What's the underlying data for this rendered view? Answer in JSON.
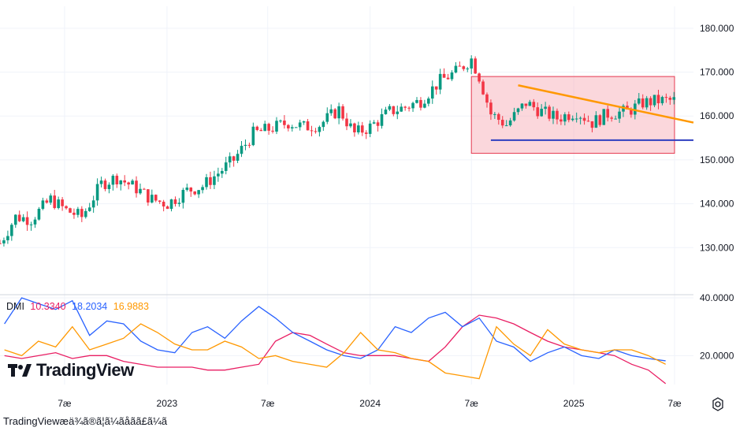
{
  "footer_text": "TradingViewæä¾ã®ã¦ã¼ã­åãã£ã¼ã",
  "logo_text": "TradingView",
  "icons": {
    "logo": "tradingview-logo-icon",
    "settings": "gear-icon"
  },
  "dmi_legend": {
    "label": "DMI",
    "values": [
      "10.3340",
      "18.2034",
      "16.9883"
    ],
    "colors": [
      "#e91e63",
      "#2962ff",
      "#ff9800"
    ]
  },
  "colors": {
    "up": "#089981",
    "down": "#f23645",
    "box_fill": "#f7a6b2",
    "box_stroke": "#e53950",
    "trend_orange": "#ff9800",
    "support_blue": "#2e3fc0"
  },
  "chart_data": [
    {
      "type": "candlestick",
      "title": "",
      "ylim": [
        120,
        185
      ],
      "y_ticks": [
        "130.000",
        "140.000",
        "150.000",
        "160.000",
        "170.000",
        "180.000"
      ],
      "y_tick_values": [
        130,
        140,
        150,
        160,
        170,
        180
      ],
      "x_tick_labels": [
        "7æ",
        "2023",
        "7æ",
        "2024",
        "7æ",
        "2025",
        "7æ"
      ],
      "x_tick_dates": [
        "2022-07-01",
        "2023-01-01",
        "2023-07-01",
        "2024-01-01",
        "2024-07-01",
        "2025-01-01",
        "2025-07-01"
      ],
      "x_range": [
        "2022-03-07",
        "2025-08-04"
      ],
      "close_series": [
        [
          "2022-03-07",
          131.0
        ],
        [
          "2022-04-04",
          137.0
        ],
        [
          "2022-05-02",
          136.5
        ],
        [
          "2022-06-06",
          141.0
        ],
        [
          "2022-07-04",
          138.5
        ],
        [
          "2022-08-01",
          137.0
        ],
        [
          "2022-09-05",
          144.5
        ],
        [
          "2022-10-03",
          146.0
        ],
        [
          "2022-11-07",
          143.5
        ],
        [
          "2022-12-05",
          141.0
        ],
        [
          "2023-01-02",
          140.0
        ],
        [
          "2023-02-06",
          143.0
        ],
        [
          "2023-03-06",
          144.0
        ],
        [
          "2023-04-03",
          147.0
        ],
        [
          "2023-05-01",
          150.0
        ],
        [
          "2023-06-05",
          156.0
        ],
        [
          "2023-07-03",
          157.0
        ],
        [
          "2023-08-07",
          158.5
        ],
        [
          "2023-09-04",
          157.5
        ],
        [
          "2023-10-02",
          158.0
        ],
        [
          "2023-11-06",
          161.5
        ],
        [
          "2023-12-04",
          156.0
        ],
        [
          "2024-01-01",
          157.5
        ],
        [
          "2024-02-05",
          161.0
        ],
        [
          "2024-03-04",
          162.0
        ],
        [
          "2024-04-01",
          163.5
        ],
        [
          "2024-05-06",
          168.0
        ],
        [
          "2024-06-03",
          170.0
        ],
        [
          "2024-07-01",
          173.0
        ],
        [
          "2024-07-15",
          169.0
        ],
        [
          "2024-08-05",
          160.5
        ],
        [
          "2024-09-02",
          158.0
        ],
        [
          "2024-10-07",
          163.0
        ],
        [
          "2024-11-04",
          161.0
        ],
        [
          "2024-12-02",
          159.5
        ],
        [
          "2025-01-06",
          161.0
        ],
        [
          "2025-02-03",
          158.5
        ],
        [
          "2025-03-03",
          160.5
        ],
        [
          "2025-04-07",
          161.0
        ],
        [
          "2025-05-05",
          163.0
        ],
        [
          "2025-06-02",
          163.5
        ]
      ],
      "annotations": {
        "range_box": {
          "x": [
            "2024-07-01",
            "2025-07-01"
          ],
          "y": [
            151.5,
            169.0
          ]
        },
        "descending_trendline": {
          "x": [
            "2024-09-23",
            "2025-08-04"
          ],
          "y": [
            167.0,
            158.5
          ]
        },
        "support_line": {
          "x": [
            "2024-08-05",
            "2025-08-04"
          ],
          "y": [
            154.5,
            154.5
          ]
        }
      }
    },
    {
      "type": "line",
      "title": "DMI",
      "ylim": [
        10,
        40
      ],
      "y_ticks": [
        "20.0000",
        "40.0000"
      ],
      "y_tick_values": [
        20,
        40
      ],
      "x": [
        "2022-03",
        "2022-04",
        "2022-05",
        "2022-06",
        "2022-07",
        "2022-08",
        "2022-09",
        "2022-10",
        "2022-11",
        "2022-12",
        "2023-01",
        "2023-02",
        "2023-03",
        "2023-04",
        "2023-05",
        "2023-06",
        "2023-07",
        "2023-08",
        "2023-09",
        "2023-10",
        "2023-11",
        "2023-12",
        "2024-01",
        "2024-02",
        "2024-03",
        "2024-04",
        "2024-05",
        "2024-06",
        "2024-07",
        "2024-08",
        "2024-09",
        "2024-10",
        "2024-11",
        "2024-12",
        "2025-01",
        "2025-02",
        "2025-03",
        "2025-04",
        "2025-05",
        "2025-06"
      ],
      "series": [
        {
          "name": "",
          "color": "#e91e63",
          "values": [
            20,
            19,
            20,
            21,
            19,
            20,
            20,
            18,
            17,
            16,
            16,
            16,
            15,
            15,
            16,
            17,
            25,
            28,
            27,
            24,
            21,
            20,
            20,
            20,
            19,
            18,
            23,
            30,
            34,
            33,
            31,
            28,
            25,
            23,
            22,
            21,
            20,
            17,
            15,
            10.3
          ]
        },
        {
          "name": "",
          "color": "#2962ff",
          "values": [
            31,
            40,
            38,
            36,
            39,
            27,
            32,
            31,
            25,
            22,
            21,
            28,
            30,
            26,
            32,
            37,
            33,
            28,
            25,
            22,
            20,
            19,
            22,
            30,
            28,
            33,
            35,
            30,
            33,
            25,
            23,
            18,
            21,
            23,
            20,
            19,
            22,
            20,
            19,
            18.2
          ]
        },
        {
          "name": "",
          "color": "#ff9800",
          "values": [
            22,
            20,
            25,
            23,
            30,
            22,
            24,
            26,
            31,
            28,
            24,
            22,
            22,
            25,
            23,
            19,
            20,
            18,
            17,
            16,
            21,
            28,
            22,
            21,
            19,
            18,
            14,
            13,
            12,
            30,
            24,
            20,
            29,
            24,
            22,
            21,
            22,
            22,
            20,
            17.0
          ]
        }
      ]
    }
  ]
}
